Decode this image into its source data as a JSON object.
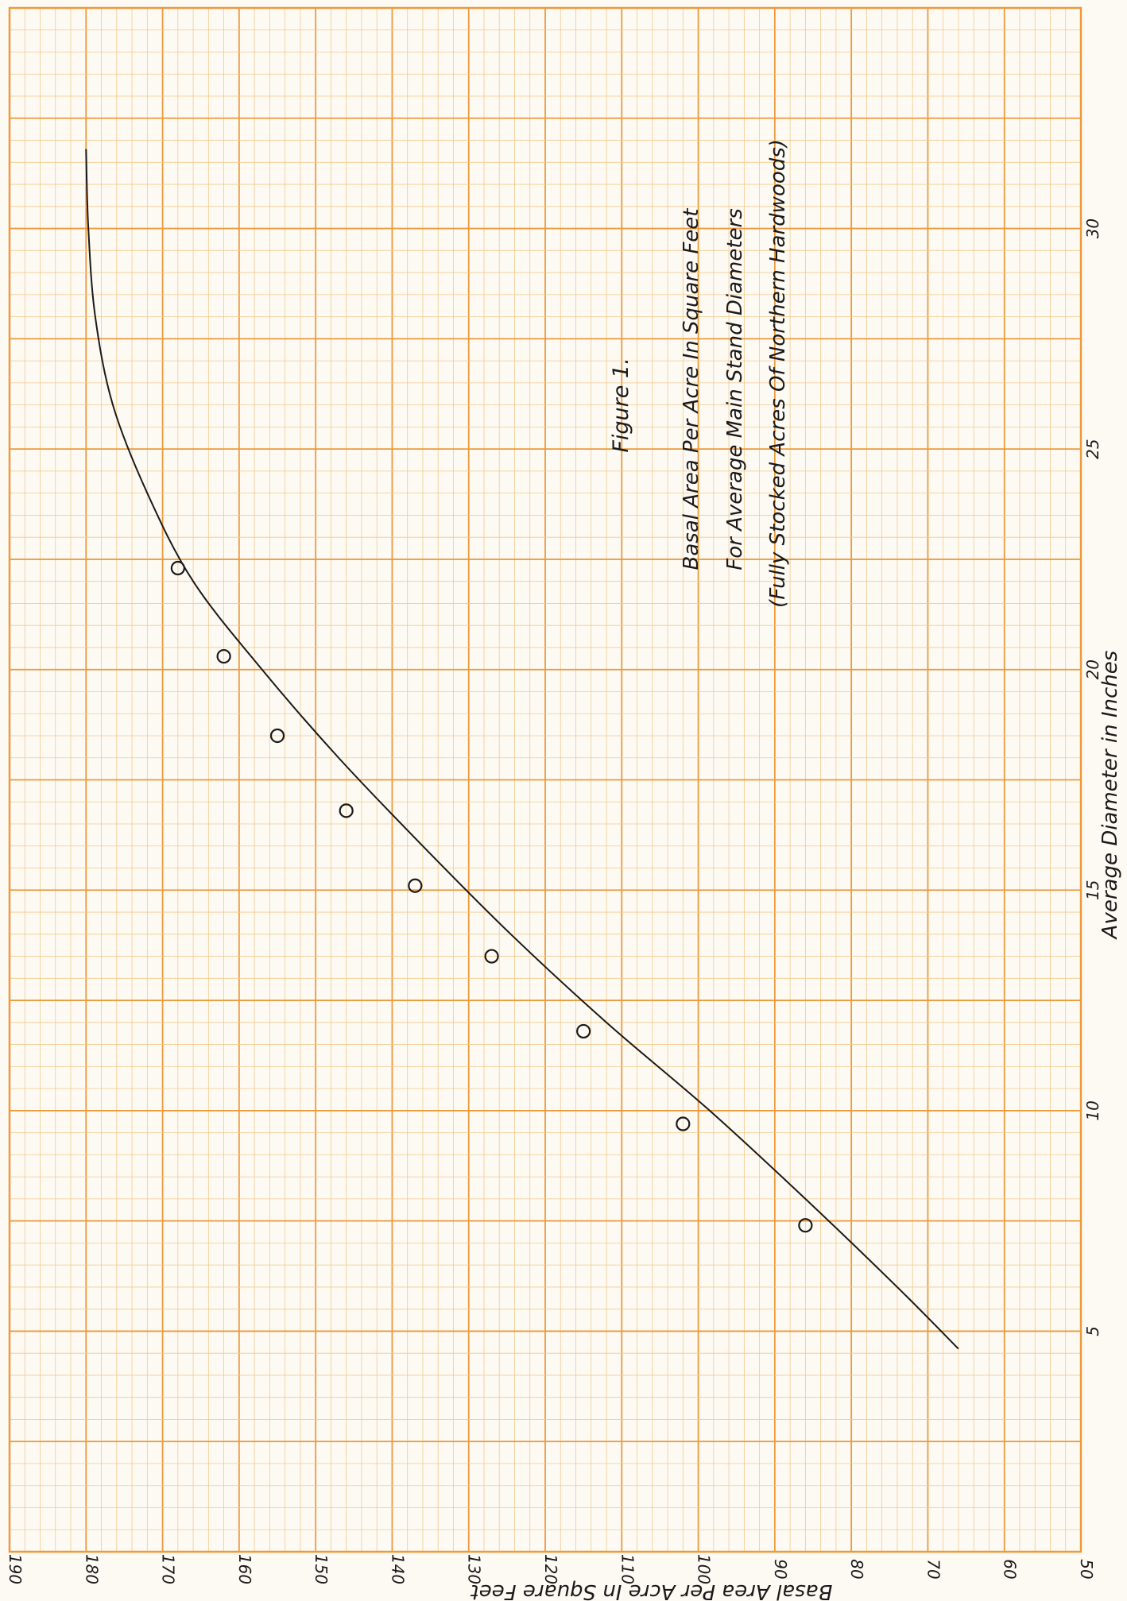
{
  "figure": {
    "label": "Figure 1.",
    "title_line1": "Basal Area Per Acre In Square Feet",
    "title_line2": "For Average Main Stand Diameters",
    "title_line3": "(Fully Stocked Acres Of Northern Hardwoods)"
  },
  "colors": {
    "paper": "#fdfaf4",
    "grid_minor": "#f3c98c",
    "grid_major": "#ec9a3c",
    "ink": "#1a1a1a"
  },
  "chart_data": {
    "type": "line",
    "title": "Basal Area Per Acre In Square Feet",
    "xlabel": "Average Diameter in Inches",
    "ylabel": "Basal Area Per Acre In Square Feet",
    "xlim": [
      0,
      35
    ],
    "ylim": [
      50,
      190
    ],
    "x_ticks": [
      5,
      10,
      15,
      20,
      25,
      30
    ],
    "y_ticks": [
      50,
      60,
      70,
      80,
      90,
      100,
      110,
      120,
      130,
      140,
      150,
      160,
      170,
      180,
      190
    ],
    "grid": true,
    "orientation": "rotated-90",
    "series": [
      {
        "role": "fitted-curve",
        "x": [
          4.6,
          6,
          8,
          10,
          12,
          14,
          16,
          18,
          20,
          22,
          24,
          26,
          28,
          30,
          31.8
        ],
        "y": [
          66,
          74,
          86,
          98.5,
          112,
          124.5,
          136,
          147,
          157,
          166,
          172,
          176.5,
          178.8,
          179.7,
          180
        ]
      },
      {
        "role": "observed-points",
        "x": [
          7.4,
          9.7,
          11.8,
          13.5,
          15.1,
          16.8,
          18.5,
          20.3,
          22.3
        ],
        "y": [
          86,
          102,
          115,
          127,
          137,
          146,
          155,
          162,
          168
        ]
      }
    ]
  }
}
